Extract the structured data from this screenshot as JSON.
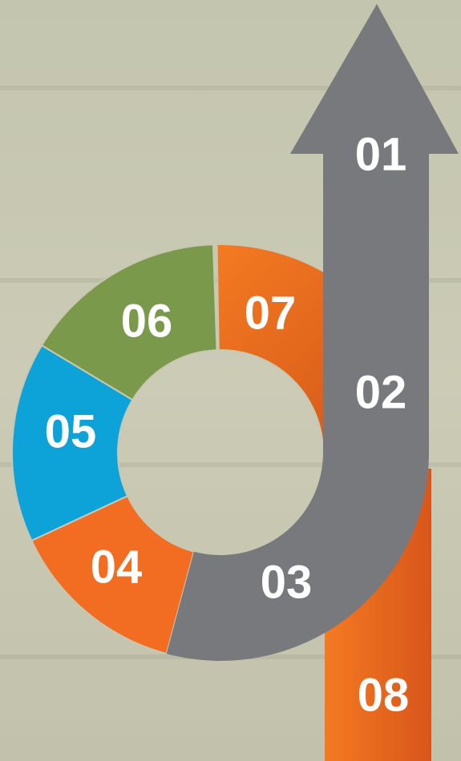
{
  "steps": [
    "01",
    "02",
    "03",
    "04",
    "05",
    "06",
    "07",
    "08"
  ]
}
